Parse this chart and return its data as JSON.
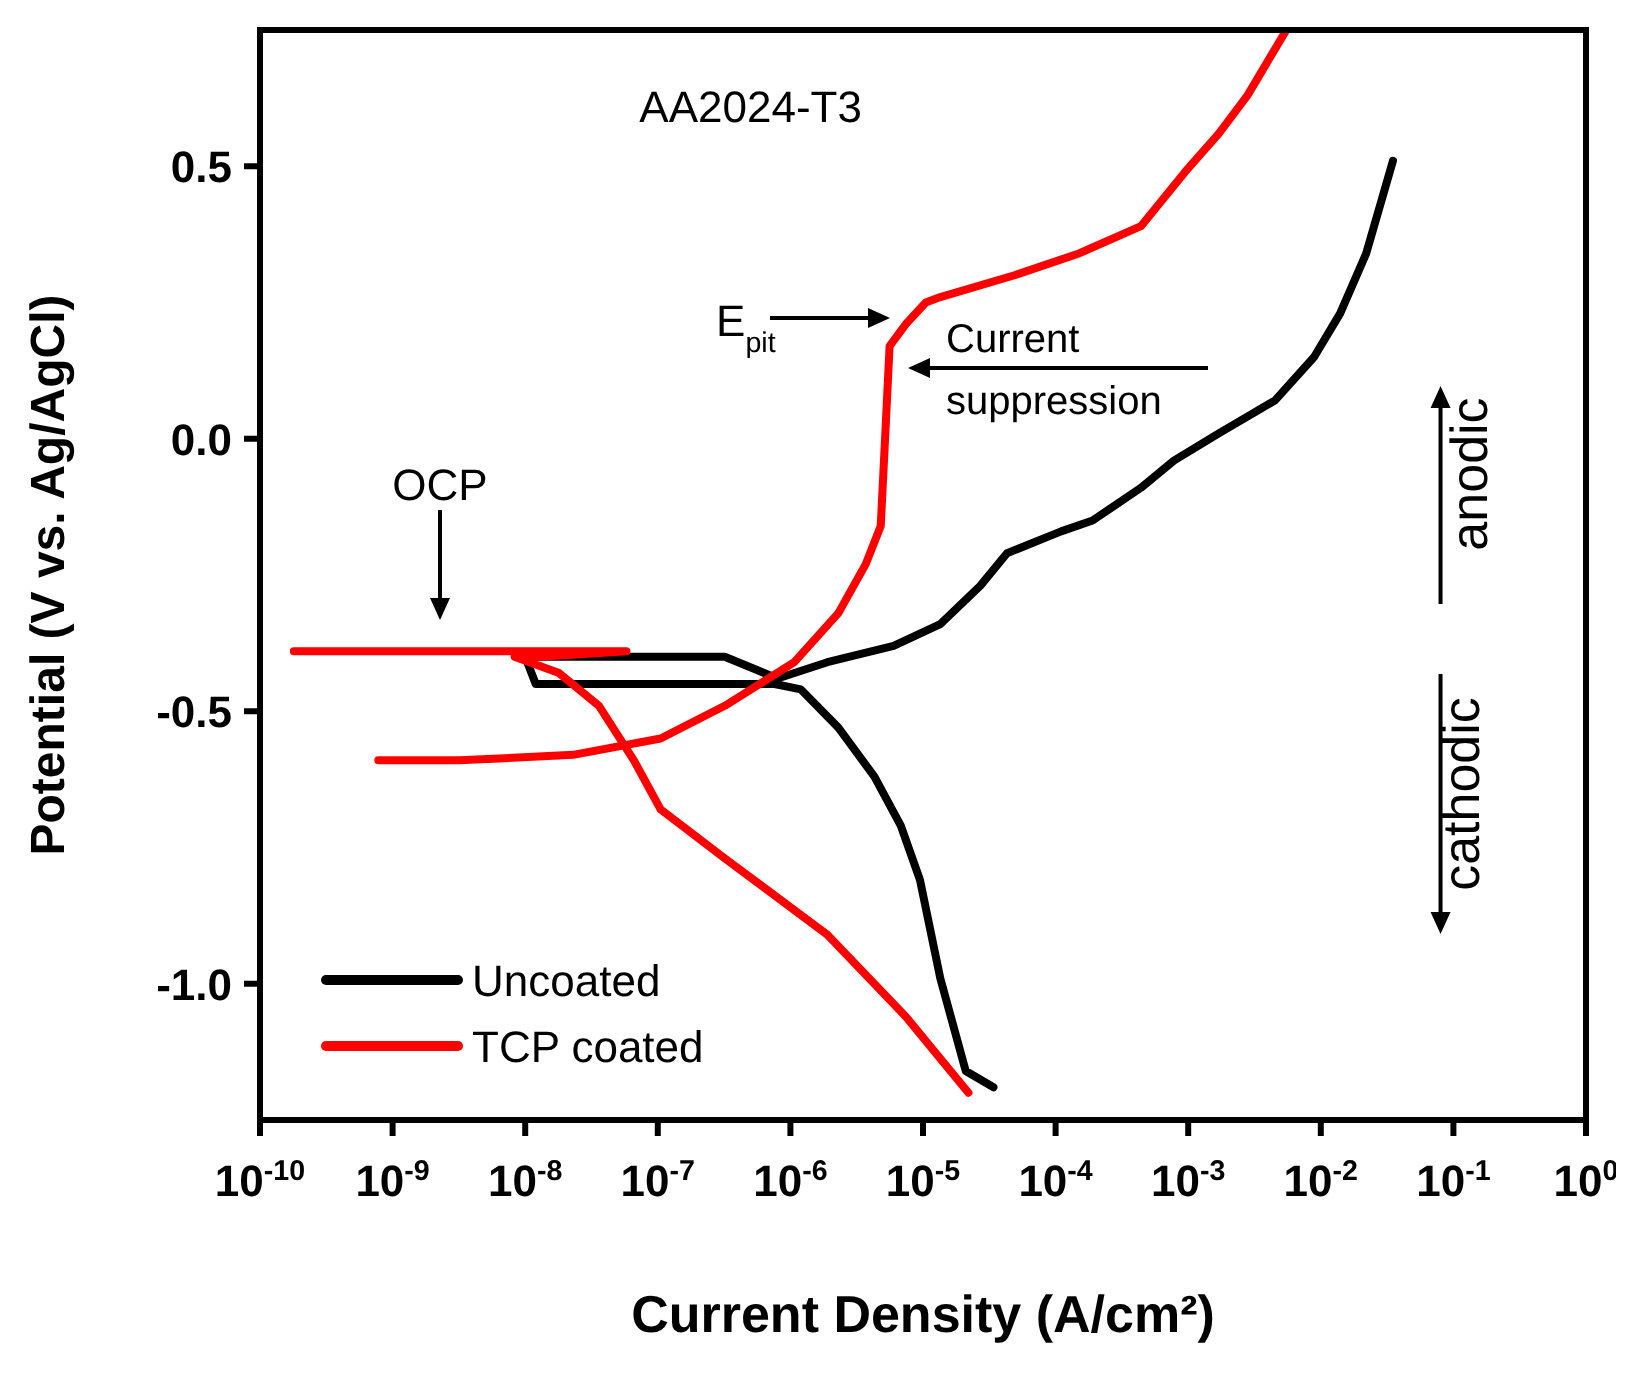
{
  "chart_data": {
    "type": "line",
    "xlabel": "Current Density (A/cm²)",
    "ylabel": "Potential (V vs. Ag/AgCl)",
    "log": "x",
    "xlim": [
      1e-10,
      1
    ],
    "ylim": [
      -1.25,
      0.75
    ],
    "xticks": [
      {
        "value": 1e-10,
        "label": "10$^{-10}$"
      },
      {
        "value": 1e-09,
        "label": "10$^{-9}$"
      },
      {
        "value": 1e-08,
        "label": "10$^{-8}$"
      },
      {
        "value": 1e-07,
        "label": "10$^{-7}$"
      },
      {
        "value": 1e-06,
        "label": "10$^{-6}$"
      },
      {
        "value": 1e-05,
        "label": "10$^{-5}$"
      },
      {
        "value": 0.0001,
        "label": "10$^{-4}$"
      },
      {
        "value": 0.001,
        "label": "10$^{-3}$"
      },
      {
        "value": 0.01,
        "label": "10$^{-2}$"
      },
      {
        "value": 0.1,
        "label": "10$^{-1}$"
      },
      {
        "value": 1,
        "label": "10$^{0}$"
      }
    ],
    "yticks": [
      {
        "value": 0.5,
        "label": "0.5"
      },
      {
        "value": 0,
        "label": "0.0"
      },
      {
        "value": -0.5,
        "label": "-0.5"
      },
      {
        "value": -1,
        "label": "-1.0"
      }
    ],
    "legend": "bottom left",
    "marker": "none",
    "line_style": "solid",
    "series": [
      {
        "name": "Uncoated",
        "color": "#000000",
        "x": [
          3.4e-05,
          2.1e-05,
          1.35e-05,
          9.5e-06,
          6.8e-06,
          4.3e-06,
          2.3e-06,
          1.2e-06,
          7.6e-07,
          1.2e-08,
          1e-08,
          3.2e-07,
          8e-07,
          1.9e-06,
          6e-06,
          1.35e-05,
          2.7e-05,
          4.3e-05,
          0.00011,
          0.00019,
          0.00044,
          0.00078,
          0.0017,
          0.0045,
          0.0089,
          0.014,
          0.022,
          0.035
        ],
        "values": [
          -1.19,
          -1.16,
          -0.99,
          -0.81,
          -0.71,
          -0.62,
          -0.53,
          -0.46,
          -0.45,
          -0.45,
          -0.4,
          -0.4,
          -0.44,
          -0.41,
          -0.38,
          -0.34,
          -0.27,
          -0.21,
          -0.17,
          -0.15,
          -0.09,
          -0.04,
          0.01,
          0.07,
          0.15,
          0.23,
          0.34,
          0.51
        ]
      },
      {
        "name": "TCP coated",
        "color": "#ff0000",
        "x": [
          7.8e-10,
          3.2e-09,
          2.3e-08,
          1.05e-07,
          3.2e-07,
          1.07e-06,
          2.3e-06,
          3.7e-06,
          4.8e-06,
          5.2e-06,
          5.6e-06,
          7.4e-06,
          1.05e-05,
          1.35e-05,
          4.9e-05,
          0.00015,
          0.00044,
          0.00095,
          0.0017,
          0.0028,
          0.0055
        ],
        "values": [
          -0.59,
          -0.59,
          -0.58,
          -0.55,
          -0.49,
          -0.41,
          -0.32,
          -0.23,
          -0.16,
          0.01,
          0.17,
          0.21,
          0.25,
          0.26,
          0.3,
          0.34,
          0.39,
          0.49,
          0.56,
          0.63,
          0.75
        ]
      },
      {
        "color": "#ff0000",
        "x": [
          1.8e-10,
          1.6e-09,
          5.8e-08,
          1.3e-08,
          8.3e-09,
          1.8e-08,
          3.6e-08,
          6.6e-08,
          1.05e-07,
          3.2e-07,
          1.9e-06,
          7.4e-06,
          2.2e-05
        ],
        "values": [
          -0.39,
          -0.39,
          -0.39,
          -0.4,
          -0.4,
          -0.43,
          -0.49,
          -0.59,
          -0.68,
          -0.77,
          -0.91,
          -1.06,
          -1.2
        ]
      }
    ],
    "annotations": [
      "AA2024-T3",
      "OCP",
      "E$_{pit}$",
      "Current suppression",
      "anodic",
      "cathodic"
    ]
  }
}
